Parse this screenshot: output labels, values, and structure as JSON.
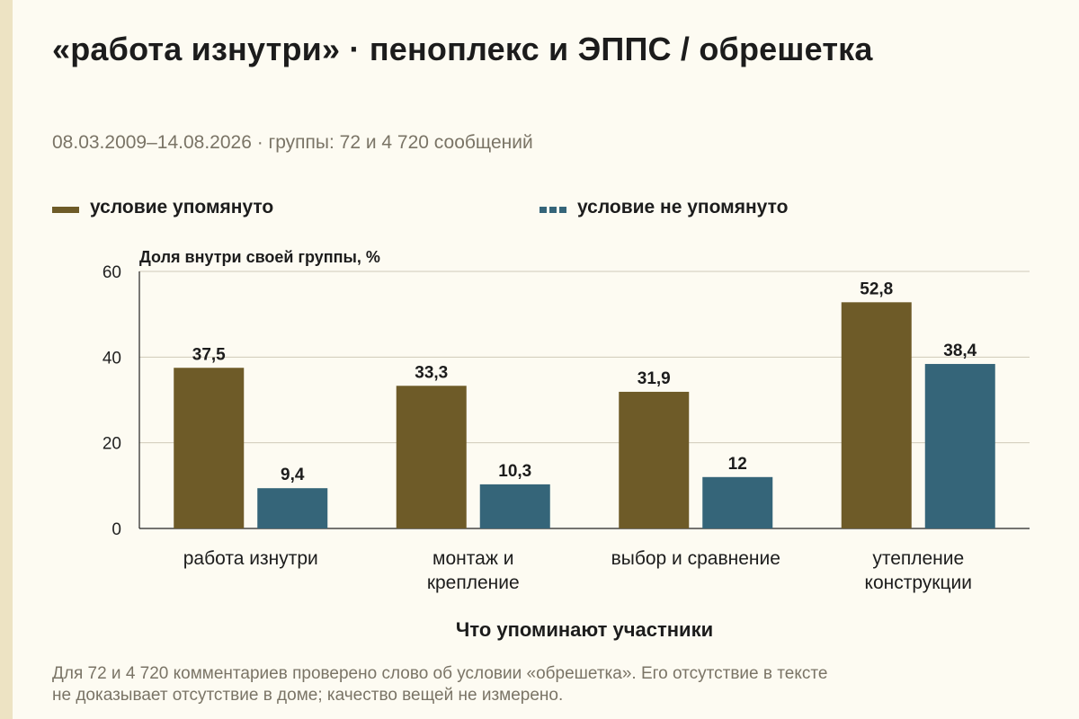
{
  "title": "«работа изнутри» · пеноплекс и ЭППС / обрешетка",
  "subtitle": "08.03.2009–14.08.2026 · группы: 72 и 4 720 сообщений",
  "legend": {
    "mentioned": "условие упомянуто",
    "not_mentioned": "условие не упомянуто"
  },
  "footnote": {
    "line1": "Для 72 и 4 720 комментариев проверено слово об условии «обрешетка». Его отсутствие в тексте",
    "line2": "не доказывает отсутствие в доме; качество вещей не измерено."
  },
  "colors": {
    "mentioned": "#6e5b28",
    "not_mentioned": "#356579",
    "background": "#fdfbf2"
  },
  "chart_data": {
    "type": "bar",
    "ylabel": "Доля внутри своей группы, %",
    "xlabel": "Что упоминают участники",
    "ylim": [
      0,
      60
    ],
    "yticks": [
      0,
      20,
      40,
      60
    ],
    "grid": true,
    "legend_position": "top",
    "categories": [
      [
        "работа изнутри"
      ],
      [
        "монтаж и",
        "крепление"
      ],
      [
        "выбор и сравнение"
      ],
      [
        "утепление",
        "конструкции"
      ]
    ],
    "series": [
      {
        "name": "условие упомянуто",
        "values": [
          37.5,
          33.3,
          31.9,
          52.8
        ],
        "labels": [
          "37,5",
          "33,3",
          "31,9",
          "52,8"
        ]
      },
      {
        "name": "условие не упомянуто",
        "values": [
          9.4,
          10.3,
          12,
          38.4
        ],
        "labels": [
          "9,4",
          "10,3",
          "12",
          "38,4"
        ]
      }
    ]
  }
}
